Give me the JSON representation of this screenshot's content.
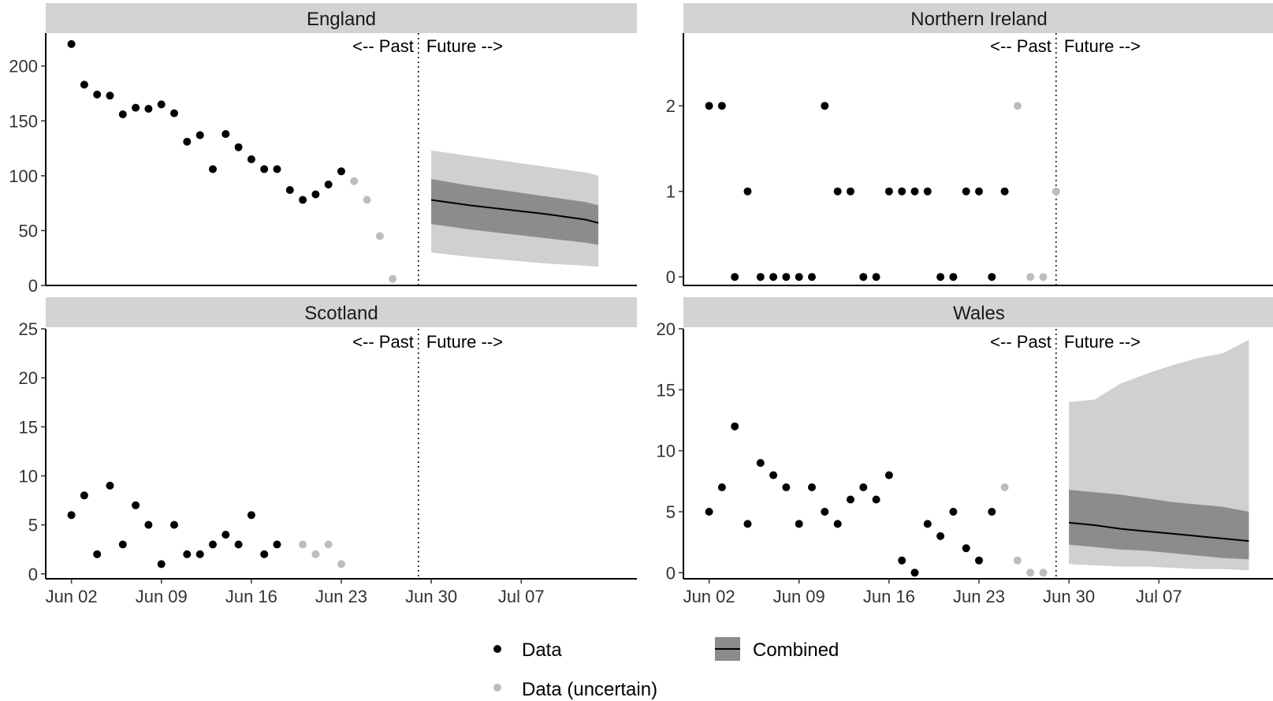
{
  "chart_data": [
    {
      "type": "scatter",
      "title": "England",
      "divider_date": "2021-06-29",
      "past_label": "<-- Past",
      "future_label": "Future -->",
      "ylim": [
        0,
        230
      ],
      "yticks": [
        0,
        50,
        100,
        150,
        200
      ],
      "xlim": [
        "2021-05-31",
        "2021-07-16"
      ],
      "xticks": [
        {
          "date": "2021-06-02",
          "label": "Jun 02"
        },
        {
          "date": "2021-06-09",
          "label": "Jun 09"
        },
        {
          "date": "2021-06-16",
          "label": "Jun 16"
        },
        {
          "date": "2021-06-23",
          "label": "Jun 23"
        },
        {
          "date": "2021-06-30",
          "label": "Jun 30"
        },
        {
          "date": "2021-07-07",
          "label": "Jul 07"
        }
      ],
      "series": [
        {
          "name": "Data",
          "points": [
            [
              "2021-06-02",
              220
            ],
            [
              "2021-06-03",
              183
            ],
            [
              "2021-06-04",
              174
            ],
            [
              "2021-06-05",
              173
            ],
            [
              "2021-06-06",
              156
            ],
            [
              "2021-06-07",
              162
            ],
            [
              "2021-06-08",
              161
            ],
            [
              "2021-06-09",
              165
            ],
            [
              "2021-06-10",
              157
            ],
            [
              "2021-06-11",
              131
            ],
            [
              "2021-06-12",
              137
            ],
            [
              "2021-06-13",
              106
            ],
            [
              "2021-06-14",
              138
            ],
            [
              "2021-06-15",
              126
            ],
            [
              "2021-06-16",
              115
            ],
            [
              "2021-06-17",
              106
            ],
            [
              "2021-06-18",
              106
            ],
            [
              "2021-06-19",
              87
            ],
            [
              "2021-06-20",
              78
            ],
            [
              "2021-06-21",
              83
            ],
            [
              "2021-06-22",
              92
            ],
            [
              "2021-06-23",
              104
            ]
          ]
        },
        {
          "name": "Data (uncertain)",
          "points": [
            [
              "2021-06-24",
              95
            ],
            [
              "2021-06-25",
              78
            ],
            [
              "2021-06-26",
              45
            ],
            [
              "2021-06-27",
              6
            ]
          ]
        }
      ],
      "forecast": {
        "dates": [
          "2021-06-30",
          "2021-07-03",
          "2021-07-06",
          "2021-07-09",
          "2021-07-12",
          "2021-07-13"
        ],
        "median": [
          78,
          73,
          69,
          65,
          60,
          57
        ],
        "inner_lower": [
          56,
          51,
          47,
          43,
          39,
          37
        ],
        "inner_upper": [
          97,
          91,
          86,
          81,
          76,
          73
        ],
        "outer_lower": [
          30,
          26,
          23,
          20,
          18,
          17
        ],
        "outer_upper": [
          123,
          118,
          113,
          108,
          103,
          100
        ]
      }
    },
    {
      "type": "scatter",
      "title": "Northern Ireland",
      "divider_date": "2021-06-29",
      "past_label": "<-- Past",
      "future_label": "Future -->",
      "ylim": [
        -0.1,
        2.85
      ],
      "yticks": [
        0,
        1,
        2
      ],
      "xlim": [
        "2021-05-31",
        "2021-07-16"
      ],
      "xticks": [
        {
          "date": "2021-06-02",
          "label": "Jun 02"
        },
        {
          "date": "2021-06-09",
          "label": "Jun 09"
        },
        {
          "date": "2021-06-16",
          "label": "Jun 16"
        },
        {
          "date": "2021-06-23",
          "label": "Jun 23"
        },
        {
          "date": "2021-06-30",
          "label": "Jun 30"
        },
        {
          "date": "2021-07-07",
          "label": "Jul 07"
        }
      ],
      "series": [
        {
          "name": "Data",
          "points": [
            [
              "2021-06-02",
              2
            ],
            [
              "2021-06-03",
              2
            ],
            [
              "2021-06-04",
              0
            ],
            [
              "2021-06-05",
              1
            ],
            [
              "2021-06-06",
              0
            ],
            [
              "2021-06-07",
              0
            ],
            [
              "2021-06-08",
              0
            ],
            [
              "2021-06-09",
              0
            ],
            [
              "2021-06-10",
              0
            ],
            [
              "2021-06-11",
              2
            ],
            [
              "2021-06-12",
              1
            ],
            [
              "2021-06-13",
              1
            ],
            [
              "2021-06-14",
              0
            ],
            [
              "2021-06-15",
              0
            ],
            [
              "2021-06-16",
              1
            ],
            [
              "2021-06-17",
              1
            ],
            [
              "2021-06-18",
              1
            ],
            [
              "2021-06-19",
              1
            ],
            [
              "2021-06-20",
              0
            ],
            [
              "2021-06-21",
              0
            ],
            [
              "2021-06-22",
              1
            ],
            [
              "2021-06-23",
              1
            ],
            [
              "2021-06-24",
              0
            ],
            [
              "2021-06-25",
              1
            ]
          ]
        },
        {
          "name": "Data (uncertain)",
          "points": [
            [
              "2021-06-26",
              2
            ],
            [
              "2021-06-27",
              0
            ],
            [
              "2021-06-28",
              0
            ],
            [
              "2021-06-29",
              1
            ]
          ]
        }
      ]
    },
    {
      "type": "scatter",
      "title": "Scotland",
      "divider_date": "2021-06-29",
      "past_label": "<-- Past",
      "future_label": "Future -->",
      "ylim": [
        -0.5,
        25
      ],
      "yticks": [
        0,
        5,
        10,
        15,
        20,
        25
      ],
      "xlim": [
        "2021-05-31",
        "2021-07-16"
      ],
      "xticks": [
        {
          "date": "2021-06-02",
          "label": "Jun 02"
        },
        {
          "date": "2021-06-09",
          "label": "Jun 09"
        },
        {
          "date": "2021-06-16",
          "label": "Jun 16"
        },
        {
          "date": "2021-06-23",
          "label": "Jun 23"
        },
        {
          "date": "2021-06-30",
          "label": "Jun 30"
        },
        {
          "date": "2021-07-07",
          "label": "Jul 07"
        }
      ],
      "series": [
        {
          "name": "Data",
          "points": [
            [
              "2021-06-02",
              6
            ],
            [
              "2021-06-03",
              8
            ],
            [
              "2021-06-04",
              2
            ],
            [
              "2021-06-05",
              9
            ],
            [
              "2021-06-06",
              3
            ],
            [
              "2021-06-07",
              7
            ],
            [
              "2021-06-08",
              5
            ],
            [
              "2021-06-09",
              1
            ],
            [
              "2021-06-10",
              5
            ],
            [
              "2021-06-11",
              2
            ],
            [
              "2021-06-12",
              2
            ],
            [
              "2021-06-13",
              3
            ],
            [
              "2021-06-14",
              4
            ],
            [
              "2021-06-15",
              3
            ],
            [
              "2021-06-16",
              6
            ],
            [
              "2021-06-17",
              2
            ],
            [
              "2021-06-18",
              3
            ]
          ]
        },
        {
          "name": "Data (uncertain)",
          "points": [
            [
              "2021-06-20",
              3
            ],
            [
              "2021-06-21",
              2
            ],
            [
              "2021-06-22",
              3
            ],
            [
              "2021-06-23",
              1
            ]
          ]
        }
      ]
    },
    {
      "type": "scatter",
      "title": "Wales",
      "divider_date": "2021-06-29",
      "past_label": "<-- Past",
      "future_label": "Future -->",
      "ylim": [
        -0.5,
        20
      ],
      "yticks": [
        0,
        5,
        10,
        15,
        20
      ],
      "xlim": [
        "2021-05-31",
        "2021-07-16"
      ],
      "xticks": [
        {
          "date": "2021-06-02",
          "label": "Jun 02"
        },
        {
          "date": "2021-06-09",
          "label": "Jun 09"
        },
        {
          "date": "2021-06-16",
          "label": "Jun 16"
        },
        {
          "date": "2021-06-23",
          "label": "Jun 23"
        },
        {
          "date": "2021-06-30",
          "label": "Jun 30"
        },
        {
          "date": "2021-07-07",
          "label": "Jul 07"
        }
      ],
      "series": [
        {
          "name": "Data",
          "points": [
            [
              "2021-06-02",
              5
            ],
            [
              "2021-06-03",
              7
            ],
            [
              "2021-06-04",
              12
            ],
            [
              "2021-06-05",
              4
            ],
            [
              "2021-06-06",
              9
            ],
            [
              "2021-06-07",
              8
            ],
            [
              "2021-06-08",
              7
            ],
            [
              "2021-06-09",
              4
            ],
            [
              "2021-06-10",
              7
            ],
            [
              "2021-06-11",
              5
            ],
            [
              "2021-06-12",
              4
            ],
            [
              "2021-06-13",
              6
            ],
            [
              "2021-06-14",
              7
            ],
            [
              "2021-06-15",
              6
            ],
            [
              "2021-06-16",
              8
            ],
            [
              "2021-06-17",
              1
            ],
            [
              "2021-06-18",
              0
            ],
            [
              "2021-06-19",
              4
            ],
            [
              "2021-06-20",
              3
            ],
            [
              "2021-06-21",
              5
            ],
            [
              "2021-06-22",
              2
            ],
            [
              "2021-06-23",
              1
            ],
            [
              "2021-06-24",
              5
            ]
          ]
        },
        {
          "name": "Data (uncertain)",
          "points": [
            [
              "2021-06-25",
              7
            ],
            [
              "2021-06-26",
              1
            ],
            [
              "2021-06-27",
              0
            ],
            [
              "2021-06-28",
              0
            ]
          ]
        }
      ],
      "forecast": {
        "dates": [
          "2021-06-30",
          "2021-07-02",
          "2021-07-04",
          "2021-07-06",
          "2021-07-08",
          "2021-07-10",
          "2021-07-12",
          "2021-07-14"
        ],
        "median": [
          4.1,
          3.9,
          3.6,
          3.4,
          3.2,
          3.0,
          2.8,
          2.6
        ],
        "inner_lower": [
          2.3,
          2.1,
          1.9,
          1.8,
          1.6,
          1.4,
          1.2,
          1.1
        ],
        "inner_upper": [
          6.8,
          6.6,
          6.4,
          6.1,
          5.8,
          5.6,
          5.4,
          5.0
        ],
        "outer_lower": [
          0.7,
          0.6,
          0.5,
          0.5,
          0.4,
          0.3,
          0.3,
          0.2
        ],
        "outer_upper": [
          14.0,
          14.2,
          15.5,
          16.3,
          17.0,
          17.6,
          18.0,
          19.1
        ]
      }
    }
  ],
  "legend": {
    "data_label": "Data",
    "uncertain_label": "Data (uncertain)",
    "combined_label": "Combined"
  },
  "colors": {
    "data": "#000000",
    "uncertain": "#bdbdbd",
    "strip": "#d3d3d3",
    "outer_band": "#d0d0d0",
    "inner_band": "#8c8c8c",
    "median": "#000000"
  }
}
